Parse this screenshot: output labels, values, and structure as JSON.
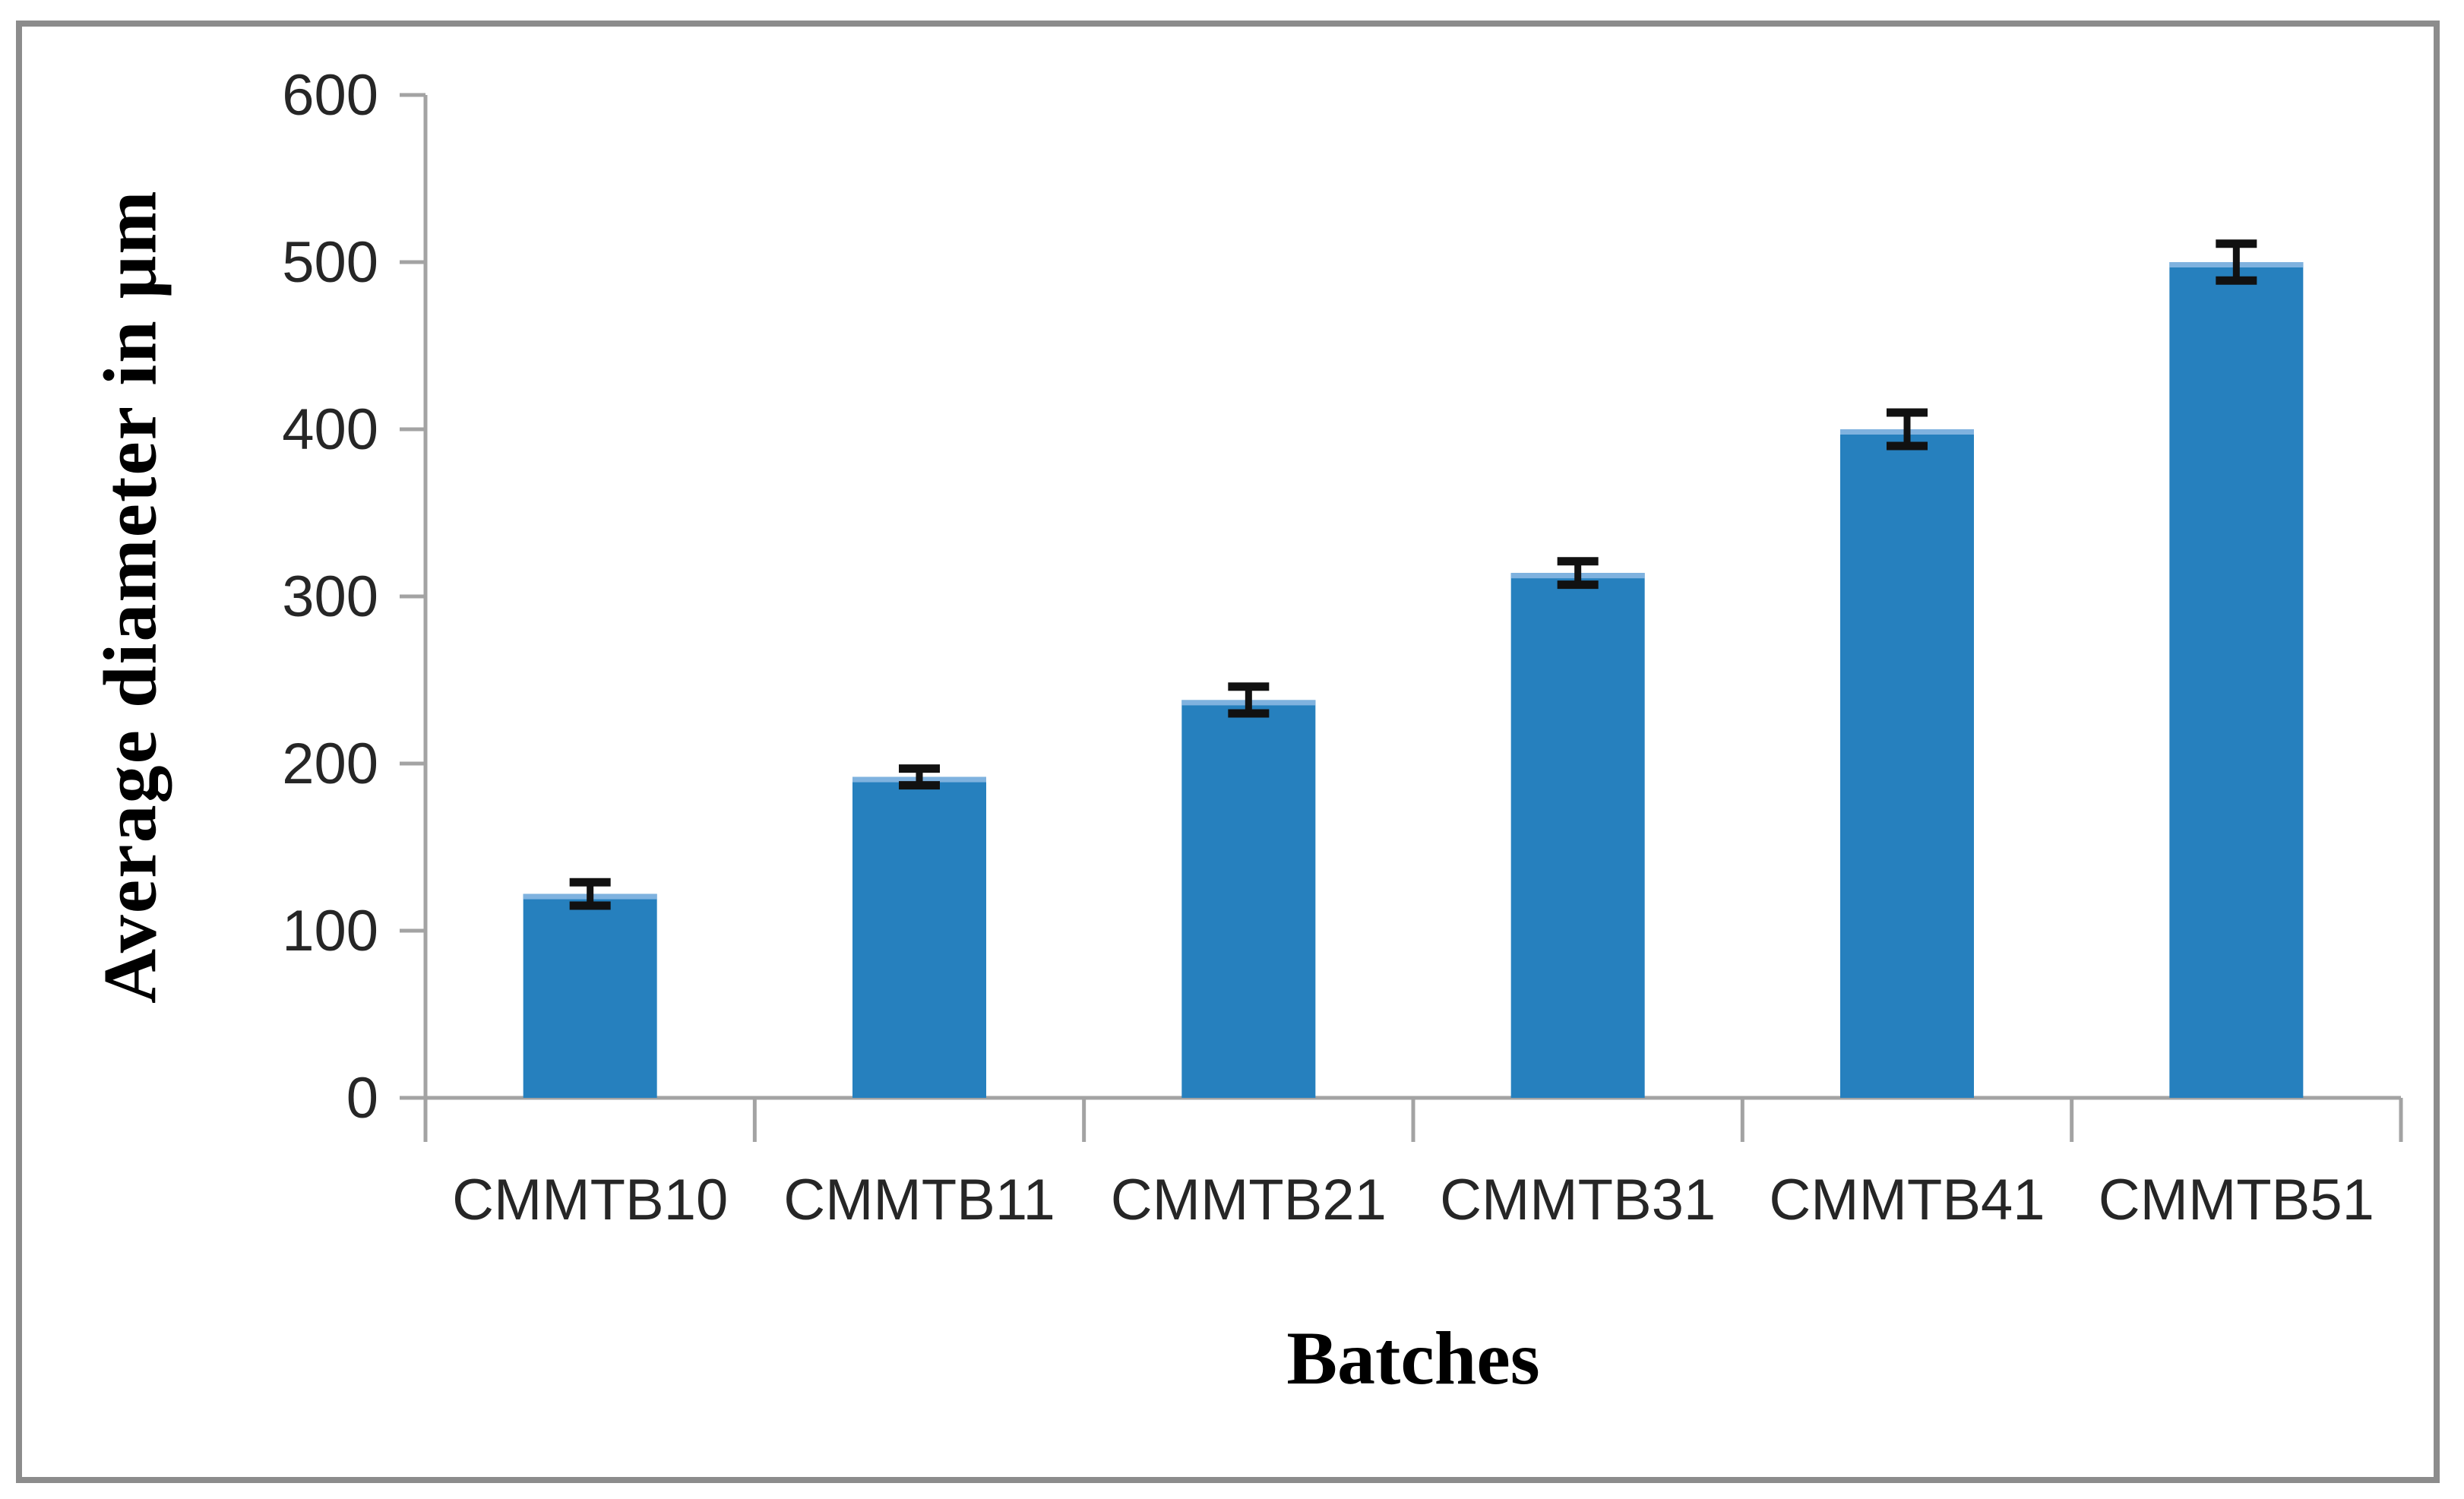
{
  "chart_data": {
    "type": "bar",
    "title": "",
    "xlabel": "Batches",
    "ylabel": "Average diameter in μm",
    "categories": [
      "CMMTB10",
      "CMMTB11",
      "CMMTB21",
      "CMMTB31",
      "CMMTB41",
      "CMMTB51"
    ],
    "values": [
      122,
      192,
      238,
      314,
      400,
      500
    ],
    "errors": [
      7,
      5,
      8,
      7,
      10,
      11
    ],
    "ylim": [
      0,
      600
    ],
    "yticks": [
      0,
      100,
      200,
      300,
      400,
      500,
      600
    ],
    "grid": false,
    "legend": "none",
    "error_bars": true,
    "colors": {
      "bar": "#2680BE",
      "bar_highlight": "#7FB2DF",
      "error": "#111111",
      "axis": "#a3a3a3",
      "tick_text": "#262626",
      "frame_border": "#8c8c8c",
      "background": "#ffffff"
    }
  }
}
